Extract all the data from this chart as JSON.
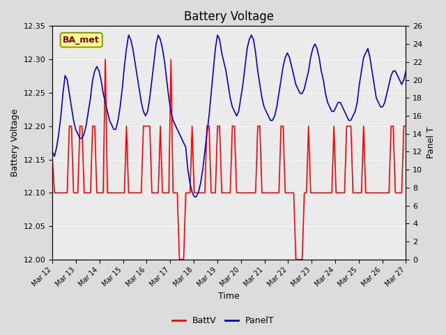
{
  "title": "Battery Voltage",
  "xlabel": "Time",
  "ylabel_left": "Battery Voltage",
  "ylabel_right": "Panel T",
  "ylim_left": [
    12.0,
    12.35
  ],
  "ylim_right": [
    0,
    26
  ],
  "yticks_left": [
    12.0,
    12.05,
    12.1,
    12.15,
    12.2,
    12.25,
    12.3,
    12.35
  ],
  "yticks_right": [
    0,
    2,
    4,
    6,
    8,
    10,
    12,
    14,
    16,
    18,
    20,
    22,
    24,
    26
  ],
  "xtick_labels": [
    "Mar 12",
    "Mar 13",
    "Mar 14",
    "Mar 15",
    "Mar 16",
    "Mar 17",
    "Mar 18",
    "Mar 19",
    "Mar 20",
    "Mar 21",
    "Mar 22",
    "Mar 23",
    "Mar 24",
    "Mar 25",
    "Mar 26",
    "Mar 27"
  ],
  "background_color": "#dcdcdc",
  "plot_bg_color": "#ebebeb",
  "annotation_box_color": "#ffff99",
  "annotation_box_edge": "#999900",
  "annotation_text": "BA_met",
  "annotation_text_color": "#8b0000",
  "legend_labels": [
    "BattV",
    "PanelT"
  ],
  "line_colors": [
    "#ff0000",
    "#0000cc"
  ],
  "batt_v": [
    12.15,
    12.1,
    12.1,
    12.1,
    12.1,
    12.1,
    12.1,
    12.1,
    12.2,
    12.2,
    12.1,
    12.1,
    12.1,
    12.2,
    12.2,
    12.1,
    12.1,
    12.1,
    12.1,
    12.2,
    12.2,
    12.1,
    12.1,
    12.1,
    12.1,
    12.3,
    12.1,
    12.1,
    12.1,
    12.1,
    12.1,
    12.1,
    12.1,
    12.1,
    12.1,
    12.2,
    12.1,
    12.1,
    12.1,
    12.1,
    12.1,
    12.1,
    12.1,
    12.2,
    12.2,
    12.2,
    12.2,
    12.1,
    12.1,
    12.1,
    12.1,
    12.2,
    12.1,
    12.1,
    12.1,
    12.1,
    12.3,
    12.1,
    12.1,
    12.1,
    12.0,
    12.0,
    12.0,
    12.1,
    12.1,
    12.1,
    12.2,
    12.1,
    12.1,
    12.1,
    12.1,
    12.1,
    12.1,
    12.2,
    12.2,
    12.1,
    12.1,
    12.1,
    12.2,
    12.2,
    12.1,
    12.1,
    12.1,
    12.1,
    12.1,
    12.2,
    12.2,
    12.1,
    12.1,
    12.1,
    12.1,
    12.1,
    12.1,
    12.1,
    12.1,
    12.1,
    12.1,
    12.2,
    12.2,
    12.1,
    12.1,
    12.1,
    12.1,
    12.1,
    12.1,
    12.1,
    12.1,
    12.1,
    12.2,
    12.2,
    12.1,
    12.1,
    12.1,
    12.1,
    12.1,
    12.0,
    12.0,
    12.0,
    12.0,
    12.1,
    12.1,
    12.2,
    12.1,
    12.1,
    12.1,
    12.1,
    12.1,
    12.1,
    12.1,
    12.1,
    12.1,
    12.1,
    12.1,
    12.2,
    12.1,
    12.1,
    12.1,
    12.1,
    12.1,
    12.2,
    12.2,
    12.2,
    12.1,
    12.1,
    12.1,
    12.1,
    12.1,
    12.2,
    12.1,
    12.1,
    12.1,
    12.1,
    12.1,
    12.1,
    12.1,
    12.1,
    12.1,
    12.1,
    12.1,
    12.1,
    12.2,
    12.2,
    12.1,
    12.1,
    12.1,
    12.1,
    12.2,
    12.2
  ],
  "panel_t": [
    12.0,
    11.5,
    12.5,
    14.0,
    16.0,
    18.5,
    20.5,
    20.0,
    18.5,
    17.0,
    15.5,
    14.5,
    14.0,
    13.5,
    13.5,
    14.0,
    15.0,
    16.5,
    18.0,
    20.0,
    21.0,
    21.5,
    21.0,
    20.0,
    18.5,
    17.5,
    16.5,
    15.5,
    15.0,
    14.5,
    14.5,
    15.5,
    17.0,
    19.0,
    21.5,
    23.5,
    25.0,
    24.5,
    23.5,
    22.0,
    20.5,
    19.0,
    17.5,
    16.5,
    16.0,
    16.5,
    18.0,
    20.0,
    22.0,
    24.0,
    25.0,
    24.5,
    23.5,
    22.0,
    20.0,
    18.0,
    16.5,
    15.5,
    15.0,
    14.5,
    14.0,
    13.5,
    13.0,
    12.5,
    10.0,
    8.5,
    7.5,
    7.0,
    7.0,
    7.5,
    8.5,
    10.0,
    12.0,
    14.0,
    16.0,
    18.5,
    21.0,
    23.5,
    25.0,
    24.5,
    23.0,
    22.0,
    21.0,
    19.5,
    18.0,
    17.0,
    16.5,
    16.0,
    16.5,
    18.0,
    19.5,
    21.5,
    23.5,
    24.5,
    25.0,
    24.5,
    23.0,
    21.0,
    19.5,
    18.0,
    17.0,
    16.5,
    16.0,
    15.5,
    15.5,
    16.0,
    17.0,
    18.5,
    20.0,
    21.5,
    22.5,
    23.0,
    22.5,
    21.5,
    20.5,
    19.5,
    19.0,
    18.5,
    18.5,
    19.0,
    20.0,
    21.0,
    22.5,
    23.5,
    24.0,
    23.5,
    22.5,
    21.0,
    20.0,
    18.5,
    17.5,
    17.0,
    16.5,
    16.5,
    17.0,
    17.5,
    17.5,
    17.0,
    16.5,
    16.0,
    15.5,
    15.5,
    16.0,
    16.5,
    17.5,
    19.5,
    21.0,
    22.5,
    23.0,
    23.5,
    22.5,
    21.0,
    19.5,
    18.0,
    17.5,
    17.0,
    17.0,
    17.5,
    18.5,
    19.5,
    20.5,
    21.0,
    21.0,
    20.5,
    20.0,
    19.5,
    20.0,
    21.0
  ]
}
